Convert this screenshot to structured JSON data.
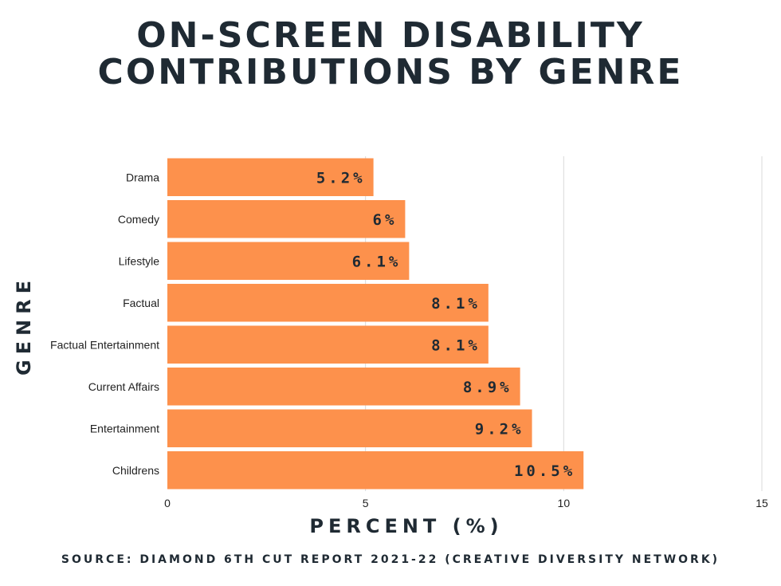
{
  "title_lines": [
    "ON-SCREEN DISABILITY",
    "CONTRIBUTIONS BY GENRE"
  ],
  "colors": {
    "bar": "#fd914c",
    "grid": "#d9d9d9",
    "text": "#1f2a33"
  },
  "chart_data": {
    "type": "bar",
    "orientation": "horizontal",
    "title": "ON-SCREEN DISABILITY CONTRIBUTIONS BY GENRE",
    "xlabel": "PERCENT (%)",
    "ylabel": "GENRE",
    "categories": [
      "Drama",
      "Comedy",
      "Lifestyle",
      "Factual",
      "Factual Entertainment",
      "Current Affairs",
      "Entertainment",
      "Childrens"
    ],
    "values": [
      5.2,
      6,
      6.1,
      8.1,
      8.1,
      8.9,
      9.2,
      10.5
    ],
    "value_labels": [
      "5.2%",
      "6%",
      "6.1%",
      "8.1%",
      "8.1%",
      "8.9%",
      "9.2%",
      "10.5%"
    ],
    "xlim": [
      0,
      15
    ],
    "xticks": [
      0,
      5,
      10,
      15
    ],
    "grid": true
  },
  "source": "SOURCE: DIAMOND 6TH CUT REPORT 2021-22 (CREATIVE DIVERSITY NETWORK)"
}
